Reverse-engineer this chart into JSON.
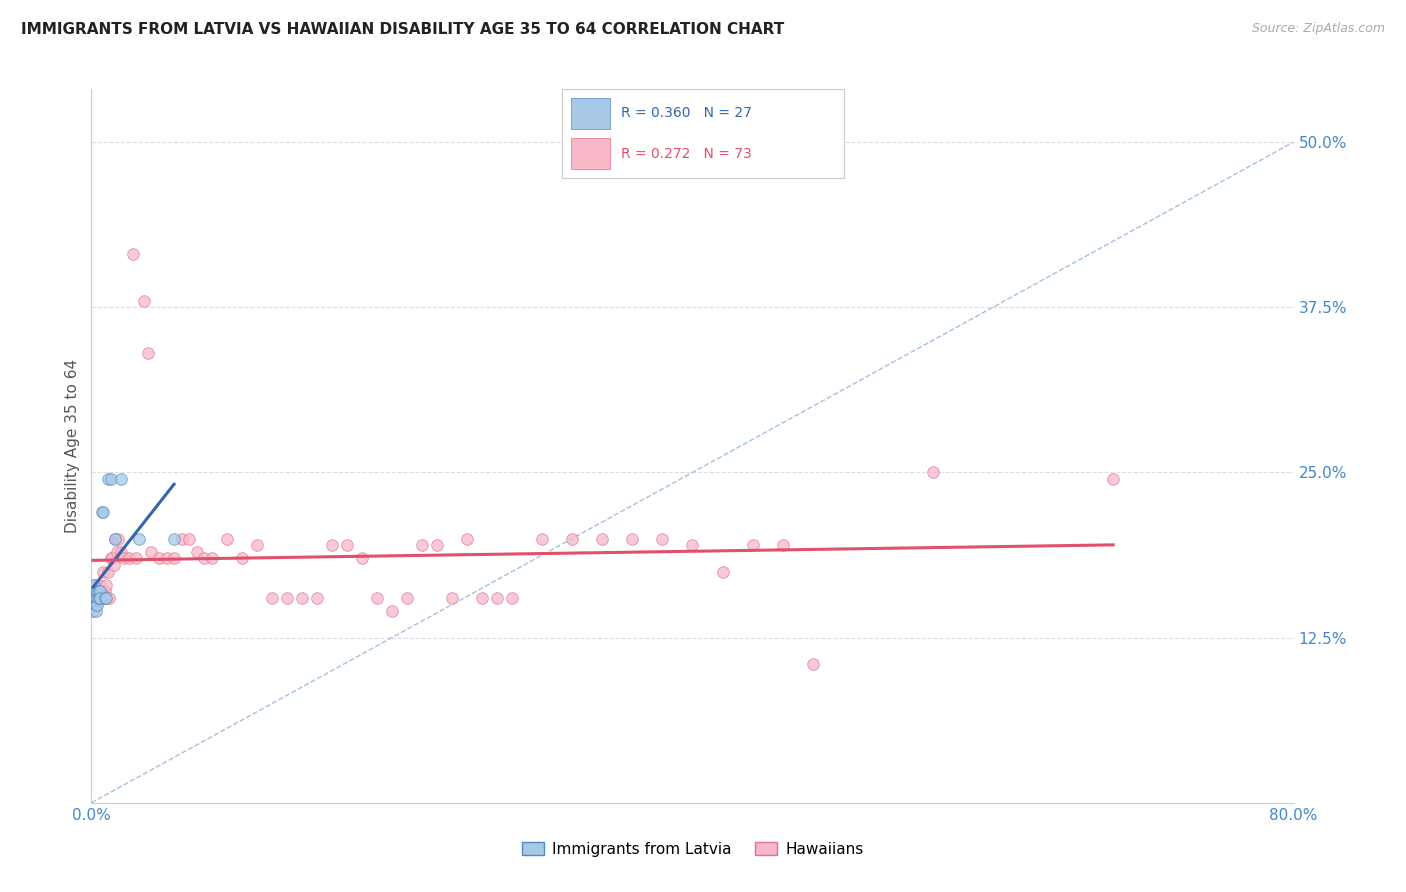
{
  "title": "IMMIGRANTS FROM LATVIA VS HAWAIIAN DISABILITY AGE 35 TO 64 CORRELATION CHART",
  "source": "Source: ZipAtlas.com",
  "ylabel_label": "Disability Age 35 to 64",
  "xlim": [
    0.0,
    0.8
  ],
  "ylim": [
    0.0,
    0.54
  ],
  "yticks": [
    0.125,
    0.25,
    0.375,
    0.5
  ],
  "ytick_labels": [
    "12.5%",
    "25.0%",
    "37.5%",
    "50.0%"
  ],
  "xticks": [
    0.0,
    0.8
  ],
  "xtick_labels": [
    "0.0%",
    "80.0%"
  ],
  "latvia_x": [
    0.001,
    0.001,
    0.002,
    0.002,
    0.002,
    0.003,
    0.003,
    0.003,
    0.003,
    0.004,
    0.004,
    0.004,
    0.005,
    0.005,
    0.005,
    0.006,
    0.006,
    0.007,
    0.008,
    0.009,
    0.01,
    0.011,
    0.013,
    0.016,
    0.02,
    0.032,
    0.055
  ],
  "latvia_y": [
    0.155,
    0.145,
    0.155,
    0.15,
    0.165,
    0.155,
    0.15,
    0.145,
    0.155,
    0.155,
    0.16,
    0.15,
    0.155,
    0.16,
    0.155,
    0.16,
    0.155,
    0.22,
    0.22,
    0.155,
    0.155,
    0.245,
    0.245,
    0.2,
    0.245,
    0.2,
    0.2
  ],
  "hawaii_x": [
    0.001,
    0.002,
    0.003,
    0.003,
    0.004,
    0.004,
    0.005,
    0.005,
    0.006,
    0.006,
    0.007,
    0.007,
    0.008,
    0.008,
    0.009,
    0.01,
    0.01,
    0.011,
    0.012,
    0.013,
    0.014,
    0.015,
    0.016,
    0.017,
    0.018,
    0.02,
    0.022,
    0.025,
    0.028,
    0.03,
    0.035,
    0.038,
    0.04,
    0.045,
    0.05,
    0.055,
    0.06,
    0.065,
    0.07,
    0.075,
    0.08,
    0.09,
    0.1,
    0.11,
    0.12,
    0.13,
    0.14,
    0.15,
    0.16,
    0.17,
    0.18,
    0.19,
    0.2,
    0.21,
    0.22,
    0.23,
    0.24,
    0.25,
    0.26,
    0.27,
    0.28,
    0.3,
    0.32,
    0.34,
    0.36,
    0.38,
    0.4,
    0.42,
    0.44,
    0.46,
    0.48,
    0.56,
    0.68
  ],
  "hawaii_y": [
    0.155,
    0.165,
    0.155,
    0.155,
    0.16,
    0.155,
    0.165,
    0.155,
    0.16,
    0.155,
    0.16,
    0.155,
    0.175,
    0.155,
    0.16,
    0.165,
    0.155,
    0.175,
    0.155,
    0.185,
    0.185,
    0.18,
    0.2,
    0.19,
    0.2,
    0.19,
    0.185,
    0.185,
    0.415,
    0.185,
    0.38,
    0.34,
    0.19,
    0.185,
    0.185,
    0.185,
    0.2,
    0.2,
    0.19,
    0.185,
    0.185,
    0.2,
    0.185,
    0.195,
    0.155,
    0.155,
    0.155,
    0.155,
    0.195,
    0.195,
    0.185,
    0.155,
    0.145,
    0.155,
    0.195,
    0.195,
    0.155,
    0.2,
    0.155,
    0.155,
    0.155,
    0.2,
    0.2,
    0.2,
    0.2,
    0.2,
    0.195,
    0.175,
    0.195,
    0.195,
    0.105,
    0.25,
    0.245
  ],
  "latvia_scatter_color": "#a8c8e8",
  "latvia_scatter_edge": "#5588bb",
  "hawaii_scatter_color": "#f8b8c8",
  "hawaii_scatter_edge": "#e07090",
  "scatter_alpha": 0.75,
  "scatter_size": 70,
  "trend_latvia_color": "#3366aa",
  "trend_hawaii_color": "#e0506a",
  "trend_diagonal_color": "#99bbdd",
  "grid_color": "#dddddd",
  "background_color": "#ffffff",
  "title_color": "#222222",
  "axis_label_color": "#555555",
  "tick_label_color": "#4488cc",
  "source_color": "#aaaaaa"
}
